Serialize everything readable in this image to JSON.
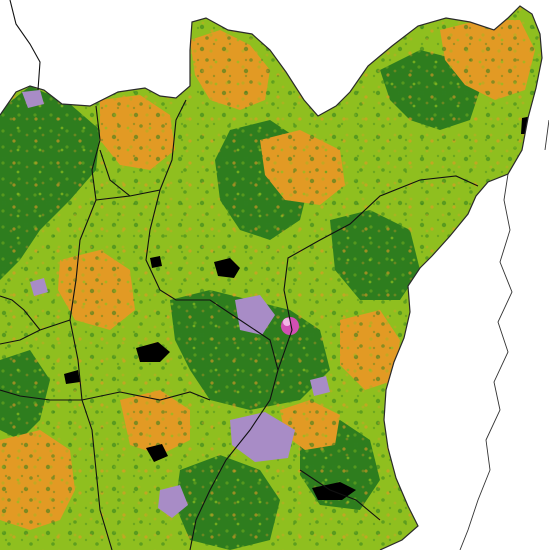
{
  "map": {
    "legend_classes": [
      {
        "name": "dense-forest",
        "color": "#2e7d1e"
      },
      {
        "name": "open-vegetation",
        "color": "#8fbf1f"
      },
      {
        "name": "cropland",
        "color": "#e29a24"
      },
      {
        "name": "bare-ground",
        "color": "#a88cc6"
      },
      {
        "name": "urban-core",
        "color": "#d14fb3"
      },
      {
        "name": "water",
        "color": "#000000"
      }
    ],
    "background_color": "#ffffff",
    "boundary_color": "#111111"
  }
}
